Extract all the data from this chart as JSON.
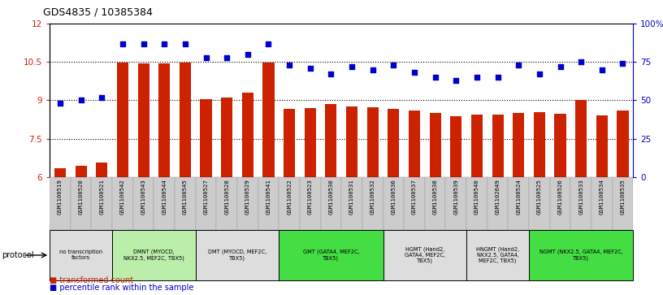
{
  "title": "GDS4835 / 10385384",
  "samples": [
    "GSM1100519",
    "GSM1100520",
    "GSM1100521",
    "GSM1100542",
    "GSM1100543",
    "GSM1100544",
    "GSM1100545",
    "GSM1100527",
    "GSM1100528",
    "GSM1100529",
    "GSM1100541",
    "GSM1100522",
    "GSM1100523",
    "GSM1100530",
    "GSM1100531",
    "GSM1100532",
    "GSM1100536",
    "GSM1100537",
    "GSM1100538",
    "GSM1100539",
    "GSM1100540",
    "GSM1102649",
    "GSM1100524",
    "GSM1100525",
    "GSM1100526",
    "GSM1100533",
    "GSM1100534",
    "GSM1100535"
  ],
  "bar_values": [
    6.35,
    6.45,
    6.55,
    10.48,
    10.45,
    10.45,
    10.48,
    9.05,
    9.1,
    9.3,
    10.48,
    8.65,
    8.68,
    8.85,
    8.77,
    8.72,
    8.65,
    8.6,
    8.52,
    8.38,
    8.45,
    8.45,
    8.5,
    8.55,
    8.48,
    9.0,
    8.42,
    8.6
  ],
  "percentile_values": [
    48,
    50,
    52,
    87,
    87,
    87,
    87,
    78,
    78,
    80,
    87,
    73,
    71,
    67,
    72,
    70,
    73,
    68,
    65,
    63,
    65,
    65,
    73,
    67,
    72,
    75,
    70,
    74
  ],
  "ylim_left": [
    6,
    12
  ],
  "ylim_right": [
    0,
    100
  ],
  "yticks_left": [
    6,
    7.5,
    9,
    10.5,
    12
  ],
  "yticks_right": [
    0,
    25,
    50,
    75,
    100
  ],
  "hlines": [
    7.5,
    9.0,
    10.5
  ],
  "bar_color": "#CC2200",
  "dot_color": "#0000CC",
  "bg_color": "#FFFFFF",
  "protocols": [
    {
      "label": "no transcription\nfactors",
      "start": 0,
      "end": 3,
      "color": "#DDDDDD"
    },
    {
      "label": "DMNT (MYOCD,\nNKX2.5, MEF2C, TBX5)",
      "start": 3,
      "end": 7,
      "color": "#BBEEAA"
    },
    {
      "label": "DMT (MYOCD, MEF2C,\nTBX5)",
      "start": 7,
      "end": 11,
      "color": "#DDDDDD"
    },
    {
      "label": "GMT (GATA4, MEF2C,\nTBX5)",
      "start": 11,
      "end": 16,
      "color": "#44DD44"
    },
    {
      "label": "HGMT (Hand2,\nGATA4, MEF2C,\nTBX5)",
      "start": 16,
      "end": 20,
      "color": "#DDDDDD"
    },
    {
      "label": "HNGMT (Hand2,\nNKX2.5, GATA4,\nMEF2C, TBX5)",
      "start": 20,
      "end": 23,
      "color": "#DDDDDD"
    },
    {
      "label": "NGMT (NKX2.5, GATA4, MEF2C,\nTBX5)",
      "start": 23,
      "end": 28,
      "color": "#44DD44"
    }
  ]
}
